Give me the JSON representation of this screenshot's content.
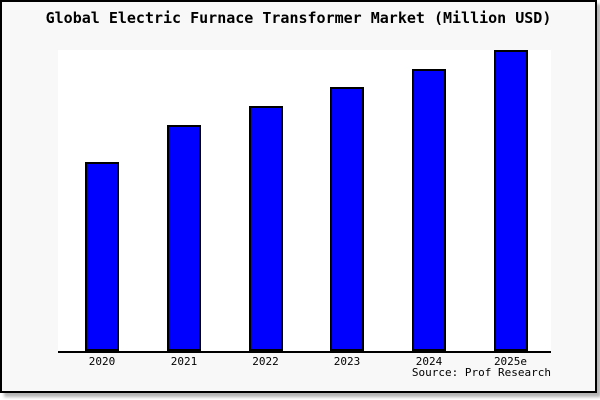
{
  "title": "Global Electric Furnace Transformer Market (Million USD)",
  "source_credit": "Source: Prof Research",
  "colors": {
    "bar_fill": "#0000ff",
    "bar_border": "#000000",
    "axis": "#000000",
    "plot_background": "#ffffff",
    "page_background": "#f8f8f8",
    "frame_border": "#000000"
  },
  "chart_data": {
    "type": "bar",
    "title": "Global Electric Furnace Transformer Market (Million USD)",
    "categories": [
      "2020",
      "2021",
      "2022",
      "2023",
      "2024",
      "2025e"
    ],
    "values": [
      189,
      226,
      245,
      264,
      282,
      301
    ],
    "values_note": "relative bar heights; no y-axis scale, ticks or gridlines shown in chart",
    "xlabel": "",
    "ylabel": "",
    "ylim": [
      0,
      301
    ],
    "grid": false,
    "legend": false,
    "annotation": "Source: Prof Research"
  }
}
